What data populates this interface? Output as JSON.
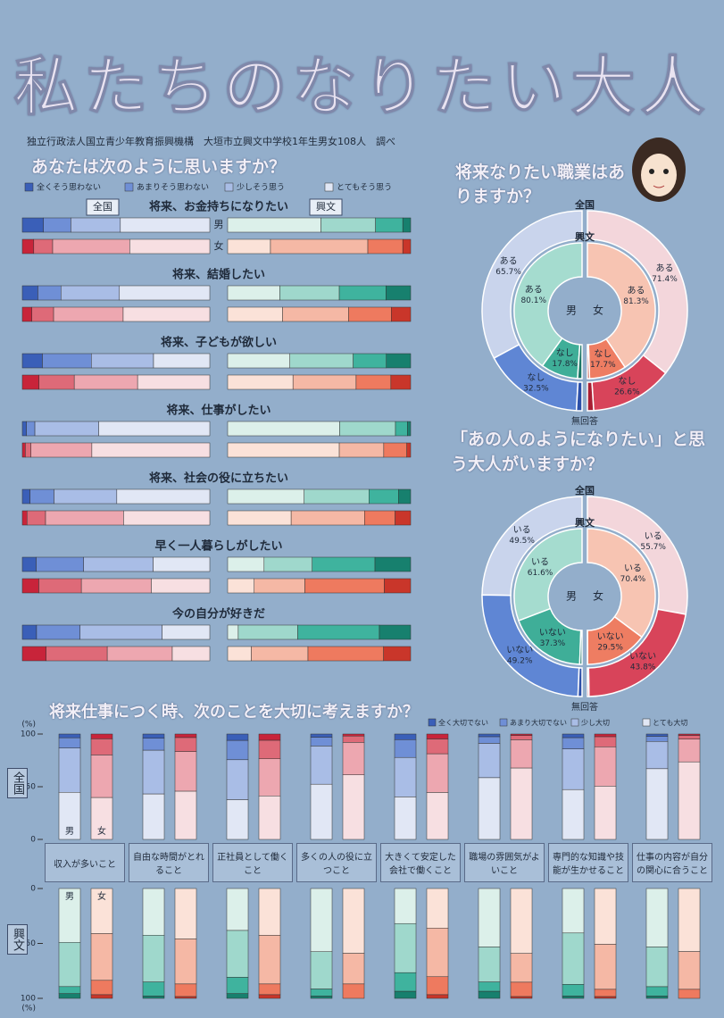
{
  "title": "私たちのなりたい大人",
  "source": "独立行政法人国立青少年教育振興機構　大垣市立興文中学校1年生男女108人　調べ",
  "chart_data": [
    {
      "type": "hbar-stack",
      "title": "あなたは次のように思いますか？",
      "legend": [
        "全くそう思わない",
        "あまりそう思わない",
        "少しそう思う",
        "とてもそう思う"
      ],
      "groups": [
        {
          "name": "全国",
          "series": [
            {
              "name": "男",
              "colors": [
                "#3a5fb8",
                "#6f8fd6",
                "#a9bde6",
                "#e1e7f5"
              ]
            },
            {
              "name": "女",
              "colors": [
                "#c8243a",
                "#de6a78",
                "#eda7b0",
                "#f7dfe2"
              ]
            }
          ]
        },
        {
          "name": "興文",
          "series": [
            {
              "name": "男",
              "colors": [
                "#17806e",
                "#3fb39e",
                "#9fd8cc",
                "#dcf0ea"
              ]
            },
            {
              "name": "女",
              "colors": [
                "#c9362a",
                "#ee7a5f",
                "#f5b8a5",
                "#fbe2d8"
              ]
            }
          ]
        }
      ],
      "questions": [
        {
          "title": "将来、お金持ちになりたい",
          "values": [
            [
              [
                11.3,
                14.6,
                26.4,
                47.7
              ],
              [
                6.1,
                10.1,
                41.1,
                42.7
              ]
            ],
            [
              [
                4.3,
                14.9,
                29.8,
                51.0
              ],
              [
                4.3,
                19.1,
                53.2,
                23.4
              ]
            ]
          ]
        },
        {
          "title": "将来、結婚したい",
          "values": [
            [
              [
                8.3,
                12.3,
                31.2,
                48.2
              ],
              [
                5.1,
                11.6,
                37.1,
                46.2
              ]
            ],
            [
              [
                13.5,
                25.5,
                32.5,
                28.5
              ],
              [
                10.6,
                23.3,
                36.1,
                30.0
              ]
            ]
          ]
        },
        {
          "title": "将来、子どもが欲しい",
          "values": [
            [
              [
                10.7,
                26.1,
                33.2,
                30.0
              ],
              [
                8.9,
                18.8,
                33.8,
                38.5
              ]
            ],
            [
              [
                13.3,
                18.1,
                34.6,
                34.0
              ],
              [
                10.8,
                19.0,
                34.5,
                35.7
              ]
            ]
          ]
        },
        {
          "title": "将来、仕事がしたい",
          "values": [
            [
              [
                2.2,
                4.5,
                34.1,
                59.2
              ],
              [
                1.6,
                3.0,
                32.5,
                62.9
              ]
            ],
            [
              [
                1.8,
                6.5,
                30.5,
                61.2
              ],
              [
                2.1,
                12.6,
                24.3,
                61.0
              ]
            ]
          ]
        },
        {
          "title": "将来、社会の役に立ちたい",
          "values": [
            [
              [
                4.1,
                12.8,
                33.5,
                49.6
              ],
              [
                2.5,
                9.9,
                41.6,
                46.0
              ]
            ],
            [
              [
                6.7,
                16.1,
                35.4,
                41.8
              ],
              [
                8.5,
                16.7,
                40.1,
                34.7
              ]
            ]
          ]
        },
        {
          "title": "早く一人暮らしがしたい",
          "values": [
            [
              [
                7.4,
                25.3,
                37.1,
                30.2
              ],
              [
                8.8,
                22.7,
                37.3,
                31.2
              ]
            ],
            [
              [
                19.5,
                34.3,
                26.3,
                19.9
              ],
              [
                14.4,
                43.4,
                27.7,
                14.5
              ]
            ]
          ]
        },
        {
          "title": "今の自分が好きだ",
          "values": [
            [
              [
                7.6,
                23.2,
                43.8,
                25.4
              ],
              [
                12.7,
                32.6,
                34.7,
                20.0
              ]
            ],
            [
              [
                17.1,
                44.6,
                32.5,
                5.8
              ],
              [
                14.8,
                41.3,
                31.0,
                12.9
              ]
            ]
          ]
        }
      ]
    },
    {
      "type": "donut",
      "title": "将来なりたい職業はありますか？",
      "categories": [
        "ある",
        "なし",
        "無回答"
      ],
      "groups": [
        {
          "name": "全国",
          "series": [
            {
              "name": "男",
              "values": [
                65.7,
                32.5,
                1.8
              ],
              "value_labels": [
                "65.7%",
                "32.5%",
                null
              ],
              "colors": [
                "#c9d4ec",
                "#5f86d4",
                "#2c4fa8"
              ]
            },
            {
              "name": "女",
              "values": [
                71.4,
                26.6,
                2.0
              ],
              "value_labels": [
                "71.4%",
                "26.6%",
                null
              ],
              "colors": [
                "#f3d6db",
                "#d8445a",
                "#a81e33"
              ]
            }
          ]
        },
        {
          "name": "興文",
          "series": [
            {
              "name": "男",
              "values": [
                80.1,
                17.8,
                2.1
              ],
              "value_labels": [
                "80.1%",
                "17.8%",
                null
              ],
              "colors": [
                "#a5dccf",
                "#3fae98",
                "#1b7766"
              ]
            },
            {
              "name": "女",
              "values": [
                81.3,
                17.7,
                1.0
              ],
              "value_labels": [
                "81.3%",
                "17.7%",
                null
              ],
              "colors": [
                "#f7c4b2",
                "#ee7d62",
                "#c0392b"
              ]
            }
          ]
        }
      ]
    },
    {
      "type": "donut",
      "title": "「あの人のようになりたい」と思う大人がいますか？",
      "categories": [
        "いる",
        "いない",
        "無回答"
      ],
      "groups": [
        {
          "name": "全国",
          "series": [
            {
              "name": "男",
              "values": [
                49.5,
                49.2,
                1.3
              ],
              "value_labels": [
                "49.5%",
                "49.2%",
                null
              ],
              "colors": [
                "#c9d4ec",
                "#5f86d4",
                "#2c4fa8"
              ]
            },
            {
              "name": "女",
              "values": [
                55.7,
                43.8,
                0.5
              ],
              "value_labels": [
                "55.7%",
                "43.8%",
                null
              ],
              "colors": [
                "#f3d6db",
                "#d8445a",
                "#a81e33"
              ]
            }
          ]
        },
        {
          "name": "興文",
          "series": [
            {
              "name": "男",
              "values": [
                61.6,
                37.3,
                1.1
              ],
              "value_labels": [
                "61.6%",
                "37.3%",
                null
              ],
              "colors": [
                "#a5dccf",
                "#3fae98",
                "#1b7766"
              ]
            },
            {
              "name": "女",
              "values": [
                70.4,
                29.5,
                0.1
              ],
              "value_labels": [
                "70.4%",
                "29.5%",
                null
              ],
              "colors": [
                "#f7c4b2",
                "#ee7d62",
                "#c0392b"
              ]
            }
          ]
        }
      ]
    },
    {
      "type": "vbar-stack",
      "title": "将来仕事につく時、次のことを大切に考えますか？",
      "legend": [
        "全く大切でない",
        "あまり大切でない",
        "少し大切",
        "とても大切"
      ],
      "categories": [
        "収入が多いこと",
        "自由な時間がとれること",
        "正社員として働くこと",
        "多くの人の役に立つこと",
        "大きくて安定した会社で働くこと",
        "職場の雰囲気がよいこと",
        "専門的な知識や技能が生かせること",
        "仕事の内容が自分の関心に合うこと"
      ],
      "ylim": [
        0,
        100
      ],
      "yticks": [
        0,
        50,
        100
      ],
      "y_unit": "(%)",
      "groups": [
        {
          "name": "全国",
          "series": [
            {
              "name": "男",
              "colors": [
                "#3a5fb8",
                "#6f8fd6",
                "#a9bde6",
                "#e1e7f5"
              ],
              "values": [
                [
                  3.5,
                  9.8,
                  42.0,
                  44.7
                ],
                [
                  4.0,
                  11.3,
                  41.5,
                  43.2
                ],
                [
                  6.0,
                  18.4,
                  37.9,
                  37.7
                ],
                [
                  3.0,
                  8.3,
                  36.3,
                  52.4
                ],
                [
                  5.3,
                  16.9,
                  37.4,
                  40.4
                ],
                [
                  2.5,
                  6.3,
                  32.6,
                  58.6
                ],
                [
                  3.4,
                  10.7,
                  38.6,
                  47.3
                ],
                [
                  2.1,
                  4.9,
                  25.9,
                  67.1
                ]
              ]
            },
            {
              "name": "女",
              "colors": [
                "#c8243a",
                "#de6a78",
                "#eda7b0",
                "#f7dfe2"
              ],
              "values": [
                [
                  4.5,
                  15.3,
                  40.4,
                  39.8
                ],
                [
                  3.3,
                  13.3,
                  37.6,
                  45.8
                ],
                [
                  5.9,
                  17.6,
                  35.2,
                  41.3
                ],
                [
                  1.9,
                  6.0,
                  30.8,
                  61.3
                ],
                [
                  4.6,
                  14.1,
                  36.7,
                  44.6
                ],
                [
                  1.4,
                  4.0,
                  26.8,
                  67.8
                ],
                [
                  2.5,
                  9.6,
                  37.3,
                  50.6
                ],
                [
                  1.3,
                  3.5,
                  21.6,
                  73.6
                ]
              ]
            }
          ]
        },
        {
          "name": "興文",
          "series": [
            {
              "name": "男",
              "colors": [
                "#17806e",
                "#3fb39e",
                "#9fd8cc",
                "#dcf0ea"
              ],
              "values": [
                [
                  4.3,
                  6.4,
                  40.3,
                  49.0
                ],
                [
                  2.1,
                  12.8,
                  42.6,
                  42.5
                ],
                [
                  4.3,
                  14.9,
                  42.6,
                  38.2
                ],
                [
                  2.1,
                  6.4,
                  34.0,
                  57.5
                ],
                [
                  6.4,
                  17.0,
                  44.7,
                  31.9
                ],
                [
                  6.4,
                  8.5,
                  31.9,
                  53.2
                ],
                [
                  2.1,
                  10.6,
                  46.8,
                  40.5
                ],
                [
                  2.1,
                  8.5,
                  36.2,
                  53.2
                ]
              ]
            },
            {
              "name": "女",
              "colors": [
                "#c9362a",
                "#ee7a5f",
                "#f5b8a5",
                "#fbe2d8"
              ],
              "values": [
                [
                  3.3,
                  13.1,
                  42.6,
                  41.0
                ],
                [
                  1.6,
                  11.5,
                  41.0,
                  45.9
                ],
                [
                  3.3,
                  9.8,
                  44.3,
                  42.6
                ],
                [
                  0.0,
                  13.1,
                  27.9,
                  59.0
                ],
                [
                  3.3,
                  16.4,
                  44.3,
                  36.0
                ],
                [
                  1.6,
                  13.1,
                  26.2,
                  59.1
                ],
                [
                  1.6,
                  6.6,
                  41.0,
                  50.8
                ],
                [
                  0.0,
                  8.2,
                  34.4,
                  57.4
                ]
              ]
            }
          ]
        }
      ]
    }
  ]
}
